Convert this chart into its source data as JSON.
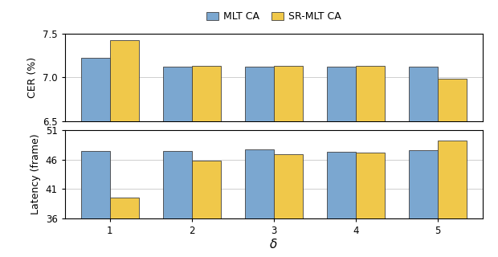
{
  "delta": [
    1,
    2,
    3,
    4,
    5
  ],
  "cer_mlt": [
    7.22,
    7.12,
    7.12,
    7.12,
    7.12
  ],
  "cer_srmlt": [
    7.42,
    7.13,
    7.13,
    7.13,
    6.99
  ],
  "lat_mlt": [
    47.5,
    47.5,
    47.7,
    47.4,
    47.6
  ],
  "lat_srmlt": [
    39.5,
    45.8,
    46.9,
    47.2,
    49.3
  ],
  "color_mlt": "#7BA7D0",
  "color_srmlt": "#F0C84A",
  "cer_ylim": [
    6.5,
    7.5
  ],
  "cer_yticks": [
    6.5,
    7.0,
    7.5
  ],
  "lat_ylim": [
    36,
    51
  ],
  "lat_yticks": [
    36,
    41,
    46,
    51
  ],
  "xlabel": "δ",
  "ylabel_cer": "CER (%)",
  "ylabel_lat": "Latency (frame)",
  "legend_labels": [
    "MLT CA",
    "SR-MLT CA"
  ],
  "bar_width": 0.35,
  "label_fontsize": 9,
  "tick_fontsize": 8.5,
  "legend_fontsize": 9
}
